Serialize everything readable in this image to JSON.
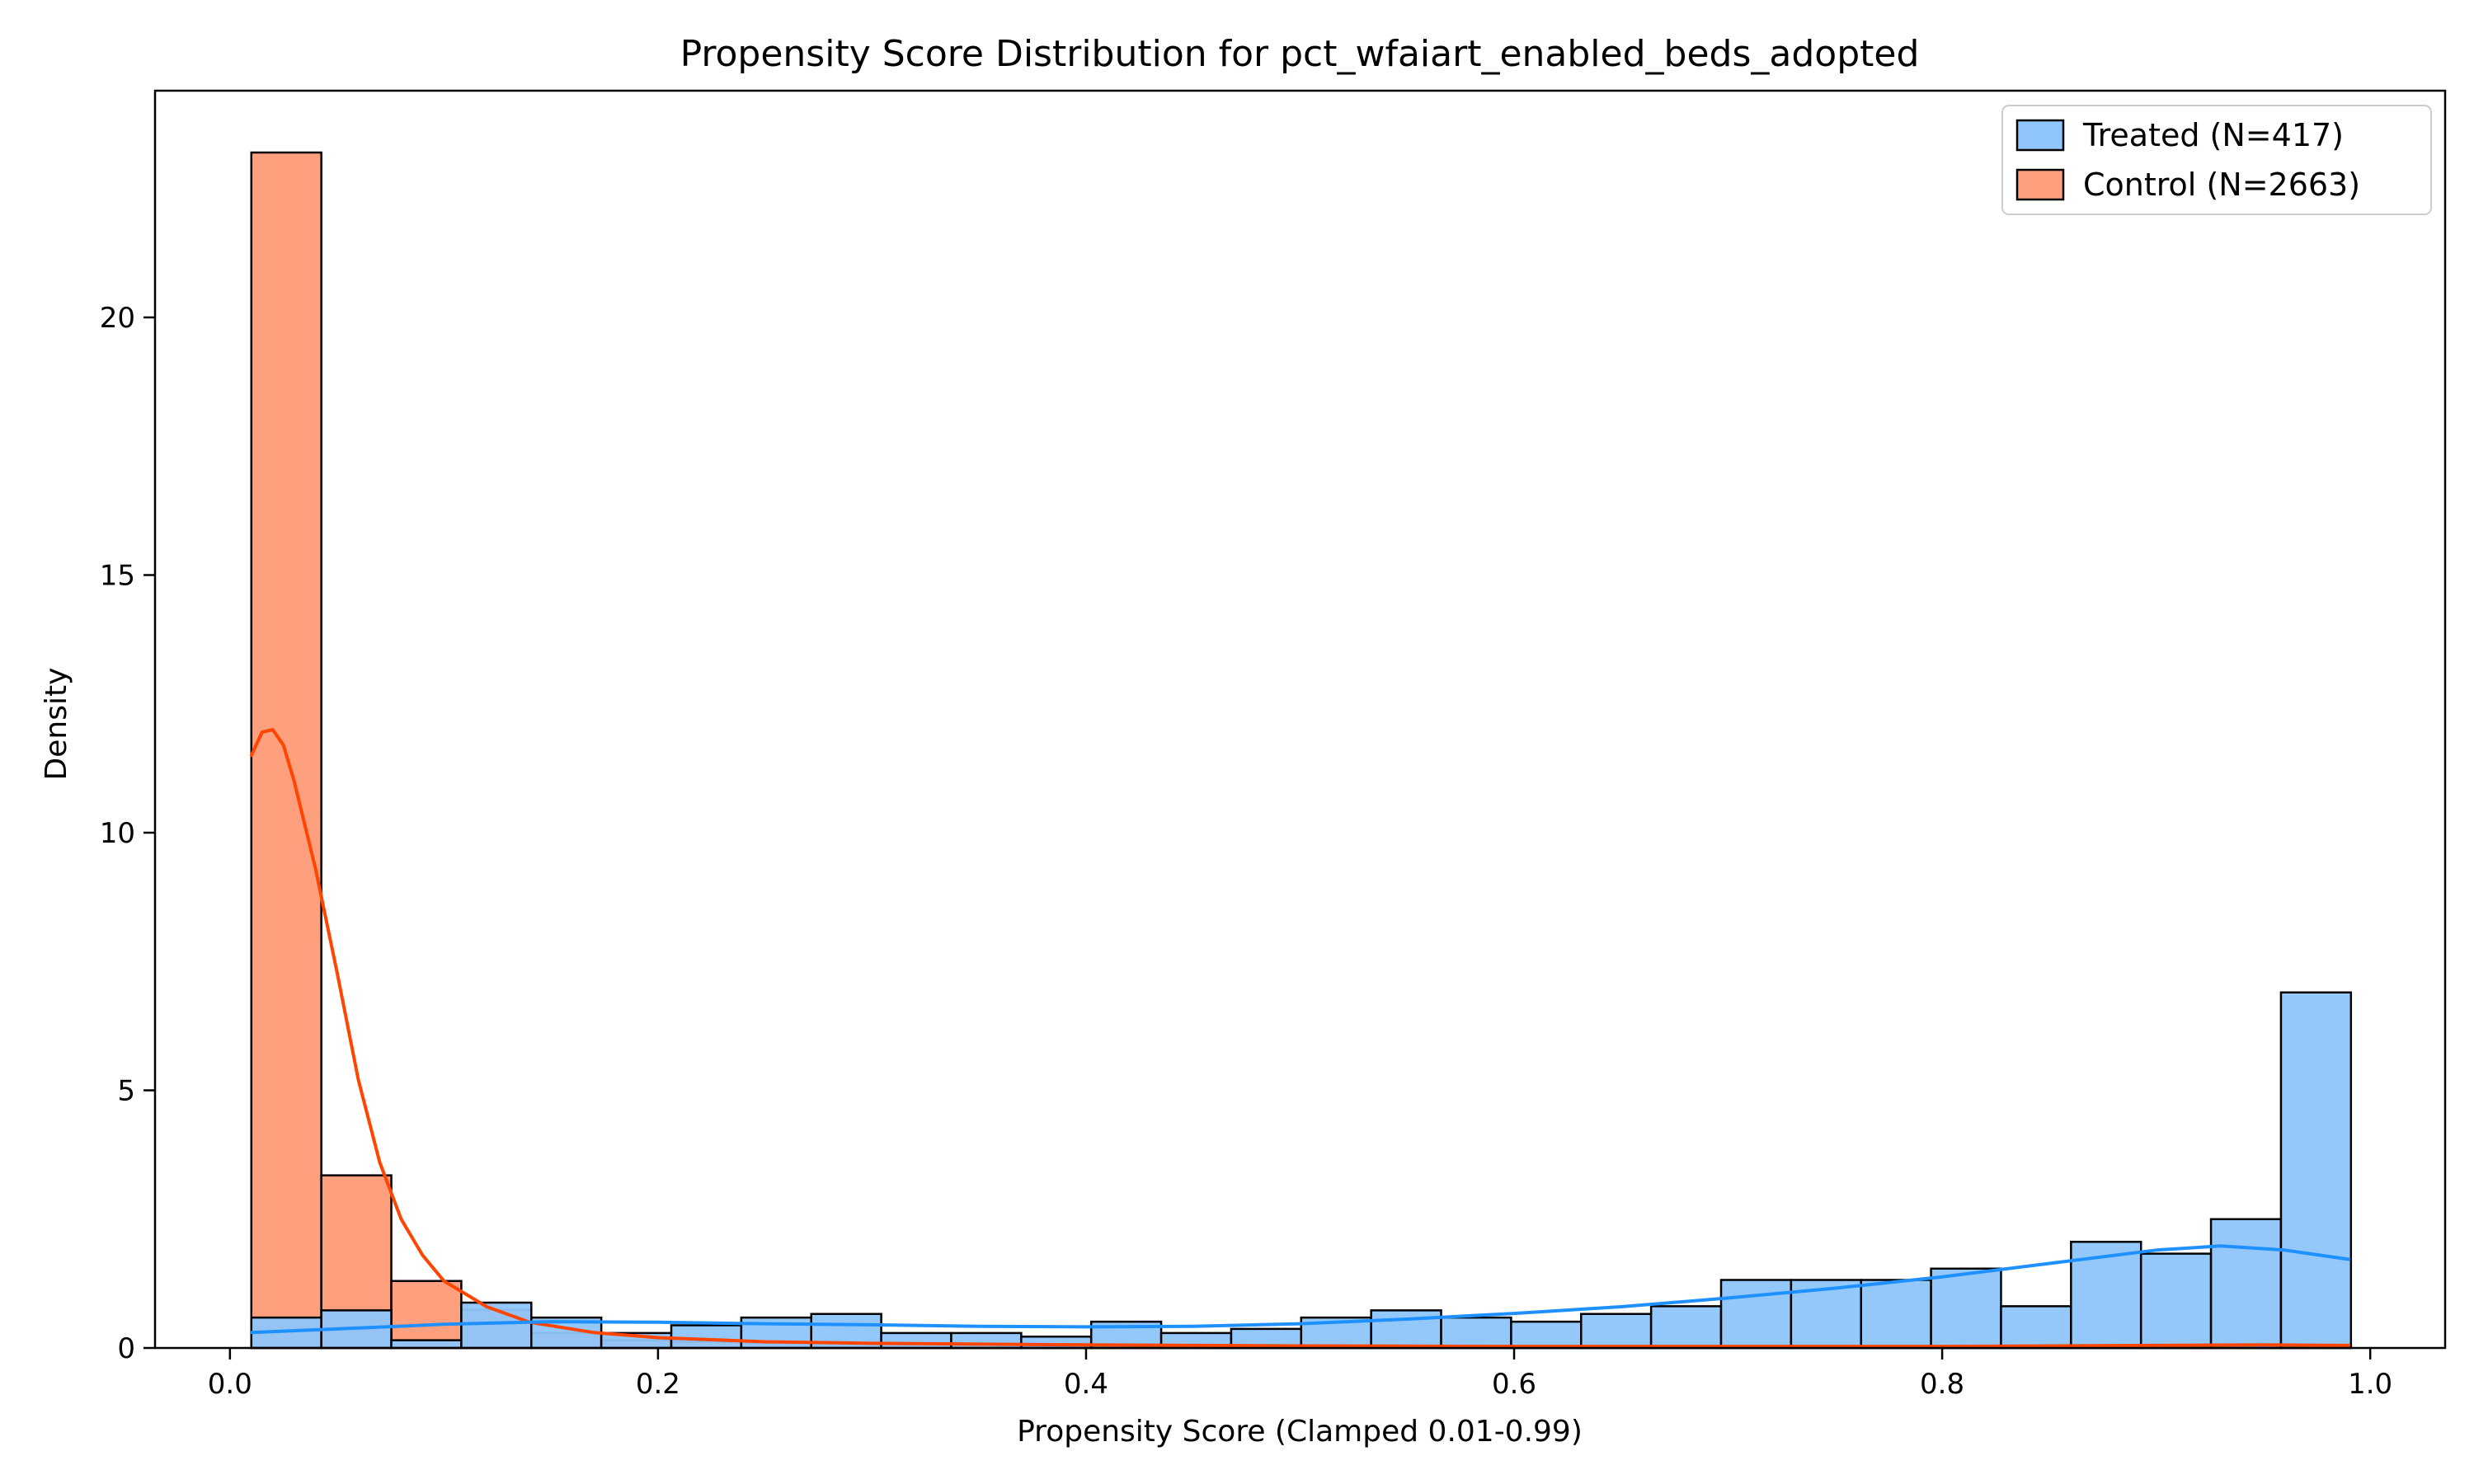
{
  "chart_data": {
    "type": "histogram",
    "title": "Propensity Score Distribution for pct_wfaiart_enabled_beds_adopted",
    "xlabel": "Propensity Score (Clamped 0.01-0.99)",
    "ylabel": "Density",
    "xlim": [
      -0.035,
      1.035
    ],
    "ylim": [
      0,
      24.4
    ],
    "xticks": [
      "0.0",
      "0.2",
      "0.4",
      "0.6",
      "0.8",
      "1.0"
    ],
    "yticks": [
      "0",
      "5",
      "10",
      "15",
      "20"
    ],
    "bin_start": 0.01,
    "bin_width": 0.0327,
    "legend_position": "top-right",
    "series": [
      {
        "name": "Treated (N=417)",
        "color": "#1e90ff",
        "fill": "#8fc5fa",
        "values": [
          0.59,
          0.73,
          0.15,
          0.88,
          0.59,
          0.29,
          0.44,
          0.59,
          0.66,
          0.29,
          0.29,
          0.22,
          0.51,
          0.29,
          0.37,
          0.59,
          0.73,
          0.59,
          0.51,
          0.66,
          0.81,
          1.32,
          1.32,
          1.32,
          1.54,
          0.81,
          2.06,
          1.83,
          2.5,
          6.9
        ],
        "kde": [
          [
            0.01,
            0.3
          ],
          [
            0.05,
            0.37
          ],
          [
            0.1,
            0.46
          ],
          [
            0.15,
            0.51
          ],
          [
            0.2,
            0.5
          ],
          [
            0.25,
            0.47
          ],
          [
            0.3,
            0.45
          ],
          [
            0.35,
            0.42
          ],
          [
            0.4,
            0.41
          ],
          [
            0.45,
            0.42
          ],
          [
            0.5,
            0.47
          ],
          [
            0.55,
            0.56
          ],
          [
            0.6,
            0.67
          ],
          [
            0.65,
            0.8
          ],
          [
            0.7,
            0.97
          ],
          [
            0.75,
            1.16
          ],
          [
            0.8,
            1.38
          ],
          [
            0.85,
            1.64
          ],
          [
            0.9,
            1.9
          ],
          [
            0.93,
            1.98
          ],
          [
            0.96,
            1.9
          ],
          [
            0.99,
            1.72
          ]
        ]
      },
      {
        "name": "Control (N=2663)",
        "color": "#ff4500",
        "fill": "#fea07e",
        "values": [
          23.2,
          3.35,
          1.3,
          0.74,
          0.29,
          0.15,
          0.12,
          0.1,
          0.1,
          0.08,
          0.08,
          0.08,
          0.06,
          0.05,
          0.04,
          0.04,
          0.03,
          0.03,
          0.03,
          0.03,
          0.03,
          0.03,
          0.03,
          0.03,
          0.03,
          0.03,
          0.05,
          0.06,
          0.05,
          0.05
        ],
        "kde": [
          [
            0.01,
            11.5
          ],
          [
            0.015,
            11.95
          ],
          [
            0.02,
            12.0
          ],
          [
            0.025,
            11.7
          ],
          [
            0.03,
            11.0
          ],
          [
            0.04,
            9.3
          ],
          [
            0.05,
            7.3
          ],
          [
            0.06,
            5.2
          ],
          [
            0.07,
            3.6
          ],
          [
            0.08,
            2.5
          ],
          [
            0.09,
            1.8
          ],
          [
            0.1,
            1.3
          ],
          [
            0.12,
            0.8
          ],
          [
            0.14,
            0.5
          ],
          [
            0.17,
            0.3
          ],
          [
            0.2,
            0.2
          ],
          [
            0.25,
            0.12
          ],
          [
            0.3,
            0.09
          ],
          [
            0.4,
            0.06
          ],
          [
            0.5,
            0.04
          ],
          [
            0.6,
            0.03
          ],
          [
            0.7,
            0.03
          ],
          [
            0.8,
            0.03
          ],
          [
            0.9,
            0.05
          ],
          [
            0.95,
            0.06
          ],
          [
            0.99,
            0.05
          ]
        ]
      }
    ]
  }
}
